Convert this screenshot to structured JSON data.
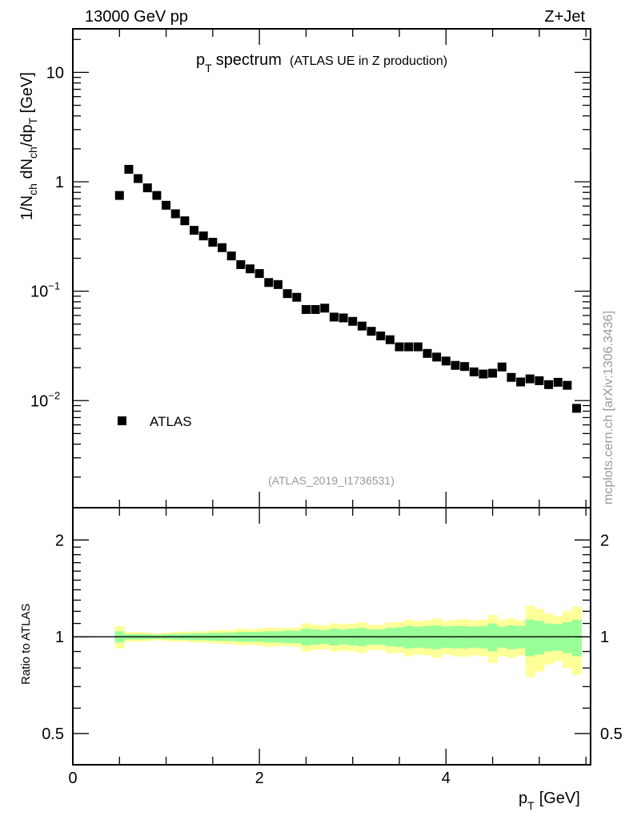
{
  "header": {
    "energy": "13000 GeV pp",
    "process": "Z+Jet"
  },
  "watermark": "mcplots.cern.ch [arXiv:1306.3436]",
  "chart_data": [
    {
      "type": "scatter",
      "title_main": "p",
      "title_sub": "T",
      "title_rest": "spectrum",
      "title_note": "(ATLAS UE in Z production)",
      "analysis_label": "(ATLAS_2019_I1736531)",
      "ylabel": "1/N_ch dN_ch/dp_T [GeV]",
      "yscale": "log",
      "ylim": [
        0.00105,
        25
      ],
      "xlim": [
        0,
        5.55
      ],
      "ytick_labels": [
        {
          "value": 10,
          "label": "10"
        },
        {
          "value": 1,
          "label": "1"
        },
        {
          "value": 0.1,
          "label": "10",
          "exp": "−1"
        },
        {
          "value": 0.01,
          "label": "10",
          "exp": "−2"
        }
      ],
      "legend": {
        "placement": "bottom-left",
        "entries": [
          "ATLAS"
        ]
      },
      "series": [
        {
          "name": "ATLAS",
          "x": [
            0.5,
            0.6,
            0.7,
            0.8,
            0.9,
            1.0,
            1.1,
            1.2,
            1.3,
            1.4,
            1.5,
            1.6,
            1.7,
            1.8,
            1.9,
            2.0,
            2.1,
            2.2,
            2.3,
            2.4,
            2.5,
            2.6,
            2.7,
            2.8,
            2.9,
            3.0,
            3.1,
            3.2,
            3.3,
            3.4,
            3.5,
            3.6,
            3.7,
            3.8,
            3.9,
            4.0,
            4.1,
            4.2,
            4.3,
            4.4,
            4.5,
            4.6,
            4.7,
            4.8,
            4.9,
            5.0,
            5.1,
            5.2,
            5.3,
            5.4
          ],
          "y": [
            0.75,
            1.3,
            1.07,
            0.88,
            0.75,
            0.61,
            0.51,
            0.44,
            0.36,
            0.32,
            0.28,
            0.25,
            0.21,
            0.175,
            0.16,
            0.145,
            0.12,
            0.115,
            0.095,
            0.088,
            0.068,
            0.068,
            0.07,
            0.058,
            0.057,
            0.053,
            0.048,
            0.043,
            0.039,
            0.036,
            0.031,
            0.031,
            0.031,
            0.027,
            0.025,
            0.023,
            0.021,
            0.0205,
            0.0183,
            0.0175,
            0.0178,
            0.0203,
            0.0163,
            0.0148,
            0.0158,
            0.0152,
            0.014,
            0.0147,
            0.0138,
            0.0085
          ]
        }
      ]
    },
    {
      "type": "area",
      "ylabel": "Ratio to ATLAS",
      "xlabel_main": "p",
      "xlabel_sub": "T",
      "xlabel_rest": "[GeV]",
      "yscale": "log",
      "ylim": [
        0.4,
        2.52
      ],
      "ytick_labels": [
        {
          "value": 2,
          "label": "2"
        },
        {
          "value": 1,
          "label": "1"
        },
        {
          "value": 0.5,
          "label": "0.5"
        }
      ],
      "xtick_labels": [
        {
          "value": 0,
          "label": "0"
        },
        {
          "value": 2,
          "label": "2"
        },
        {
          "value": 4,
          "label": "4"
        }
      ],
      "reference_line": 1,
      "bin_width": 0.1,
      "band_inner_color": "#99ff99",
      "band_outer_color": "#ffff99",
      "band_inner_rel_err": [
        0.04,
        0.02,
        0.02,
        0.018,
        0.016,
        0.018,
        0.02,
        0.022,
        0.025,
        0.025,
        0.028,
        0.03,
        0.03,
        0.035,
        0.035,
        0.035,
        0.04,
        0.04,
        0.045,
        0.045,
        0.06,
        0.055,
        0.05,
        0.06,
        0.055,
        0.06,
        0.065,
        0.055,
        0.055,
        0.065,
        0.07,
        0.08,
        0.075,
        0.08,
        0.085,
        0.075,
        0.08,
        0.08,
        0.075,
        0.08,
        0.1,
        0.075,
        0.085,
        0.08,
        0.13,
        0.12,
        0.1,
        0.095,
        0.11,
        0.13
      ],
      "band_outer_rel_err": [
        0.08,
        0.035,
        0.035,
        0.03,
        0.025,
        0.03,
        0.035,
        0.035,
        0.04,
        0.04,
        0.045,
        0.05,
        0.05,
        0.06,
        0.055,
        0.06,
        0.07,
        0.065,
        0.065,
        0.07,
        0.1,
        0.09,
        0.085,
        0.1,
        0.095,
        0.1,
        0.11,
        0.09,
        0.09,
        0.11,
        0.11,
        0.13,
        0.12,
        0.125,
        0.14,
        0.12,
        0.13,
        0.135,
        0.125,
        0.13,
        0.17,
        0.13,
        0.14,
        0.125,
        0.25,
        0.22,
        0.18,
        0.16,
        0.2,
        0.24
      ]
    }
  ]
}
